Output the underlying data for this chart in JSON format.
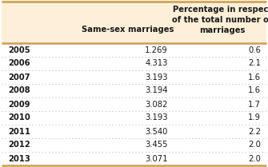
{
  "years": [
    "2005",
    "2006",
    "2007",
    "2008",
    "2009",
    "2010",
    "2011",
    "2012",
    "2013"
  ],
  "same_sex": [
    "1.269",
    "4.313",
    "3.193",
    "3.194",
    "3.082",
    "3.193",
    "3.540",
    "3.455",
    "3.071"
  ],
  "percentage": [
    "0.6",
    "2.1",
    "1.6",
    "1.6",
    "1.7",
    "1.9",
    "2.2",
    "2.0",
    "2.0"
  ],
  "col1_header": "Same-sex marriages",
  "col2_header_line1": "Percentage in respect",
  "col2_header_line2": "of the total number of",
  "col2_header_line3": "marriages",
  "header_bg": "#fdefd8",
  "text_color": "#1a1a1a",
  "header_text_color": "#1a1a1a",
  "border_color": "#c8a050",
  "divider_color": "#c8c8c8",
  "figsize": [
    3.35,
    2.09
  ],
  "dpi": 100
}
